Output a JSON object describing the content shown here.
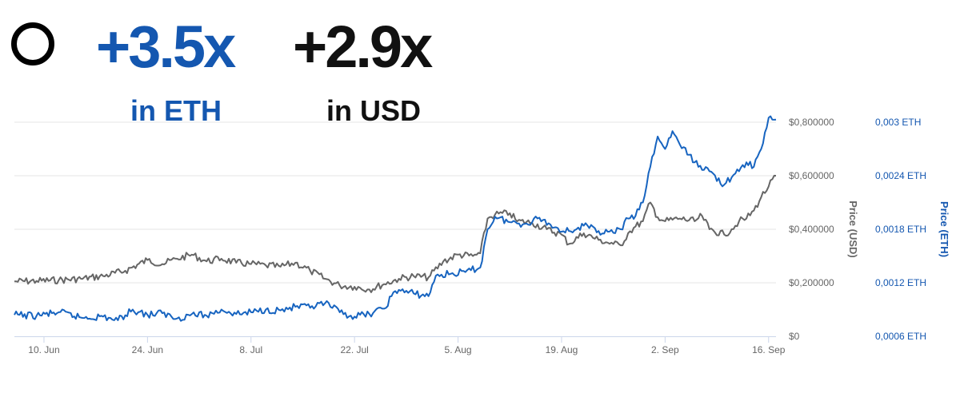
{
  "headline": {
    "eth_multiplier": "+3.5x",
    "eth_caption": "in ETH",
    "usd_multiplier": "+2.9x",
    "usd_caption": "in USD"
  },
  "colors": {
    "eth": "#1764c0",
    "usd": "#666666",
    "eth_text": "#1457b0",
    "grid": "#e6e6e6",
    "axis_text": "#666666"
  },
  "chart_data": {
    "type": "line",
    "title": "",
    "xlabel": "",
    "x_ticks": [
      "10. Jun",
      "24. Jun",
      "8. Jul",
      "22. Jul",
      "5. Aug",
      "19. Aug",
      "2. Sep",
      "16. Sep"
    ],
    "x_range": [
      "2019-06-06",
      "2019-09-17"
    ],
    "x_tick_dates": [
      "2019-06-10",
      "2019-06-24",
      "2019-07-08",
      "2019-07-22",
      "2019-08-05",
      "2019-08-19",
      "2019-09-02",
      "2019-09-16"
    ],
    "y_left": {
      "label": "Price (USD)",
      "tick_labels": [
        "$0",
        "$0,200000",
        "$0,400000",
        "$0,600000",
        "$0,800000"
      ],
      "tick_values": [
        0,
        0.2,
        0.4,
        0.6,
        0.8
      ],
      "range": [
        0,
        0.8
      ]
    },
    "y_right": {
      "label": "Price (ETH)",
      "tick_labels": [
        "0,0006 ETH",
        "0,0012 ETH",
        "0,0018 ETH",
        "0,0024 ETH",
        "0,003 ETH"
      ],
      "tick_values": [
        0.0006,
        0.0012,
        0.0018,
        0.0024,
        0.003
      ],
      "range": [
        0.0006,
        0.003
      ]
    },
    "grid": true,
    "series": [
      {
        "name": "Price (USD)",
        "axis": "left",
        "points": [
          [
            "2019-06-06",
            0.205
          ],
          [
            "2019-06-09",
            0.207
          ],
          [
            "2019-06-12",
            0.21
          ],
          [
            "2019-06-15",
            0.215
          ],
          [
            "2019-06-18",
            0.225
          ],
          [
            "2019-06-21",
            0.245
          ],
          [
            "2019-06-24",
            0.285
          ],
          [
            "2019-06-26",
            0.27
          ],
          [
            "2019-06-28",
            0.29
          ],
          [
            "2019-06-30",
            0.305
          ],
          [
            "2019-07-02",
            0.28
          ],
          [
            "2019-07-04",
            0.29
          ],
          [
            "2019-07-06",
            0.275
          ],
          [
            "2019-07-08",
            0.27
          ],
          [
            "2019-07-10",
            0.265
          ],
          [
            "2019-07-12",
            0.26
          ],
          [
            "2019-07-14",
            0.275
          ],
          [
            "2019-07-16",
            0.245
          ],
          [
            "2019-07-18",
            0.215
          ],
          [
            "2019-07-20",
            0.19
          ],
          [
            "2019-07-22",
            0.185
          ],
          [
            "2019-07-24",
            0.175
          ],
          [
            "2019-07-26",
            0.195
          ],
          [
            "2019-07-28",
            0.215
          ],
          [
            "2019-07-30",
            0.225
          ],
          [
            "2019-08-01",
            0.22
          ],
          [
            "2019-08-03",
            0.28
          ],
          [
            "2019-08-05",
            0.305
          ],
          [
            "2019-08-07",
            0.3
          ],
          [
            "2019-08-08",
            0.31
          ],
          [
            "2019-08-09",
            0.44
          ],
          [
            "2019-08-10",
            0.455
          ],
          [
            "2019-08-12",
            0.46
          ],
          [
            "2019-08-13",
            0.43
          ],
          [
            "2019-08-15",
            0.425
          ],
          [
            "2019-08-17",
            0.4
          ],
          [
            "2019-08-19",
            0.38
          ],
          [
            "2019-08-20",
            0.345
          ],
          [
            "2019-08-22",
            0.385
          ],
          [
            "2019-08-24",
            0.36
          ],
          [
            "2019-08-26",
            0.345
          ],
          [
            "2019-08-27",
            0.34
          ],
          [
            "2019-08-28",
            0.385
          ],
          [
            "2019-08-29",
            0.41
          ],
          [
            "2019-08-30",
            0.43
          ],
          [
            "2019-08-31",
            0.5
          ],
          [
            "2019-09-01",
            0.445
          ],
          [
            "2019-09-02",
            0.43
          ],
          [
            "2019-09-04",
            0.44
          ],
          [
            "2019-09-06",
            0.43
          ],
          [
            "2019-09-07",
            0.45
          ],
          [
            "2019-09-08",
            0.4
          ],
          [
            "2019-09-10",
            0.38
          ],
          [
            "2019-09-11",
            0.4
          ],
          [
            "2019-09-12",
            0.43
          ],
          [
            "2019-09-13",
            0.44
          ],
          [
            "2019-09-14",
            0.47
          ],
          [
            "2019-09-15",
            0.52
          ],
          [
            "2019-09-16",
            0.56
          ],
          [
            "2019-09-17",
            0.6
          ]
        ]
      },
      {
        "name": "Price (ETH)",
        "axis": "right",
        "points": [
          [
            "2019-06-06",
            0.00084
          ],
          [
            "2019-06-09",
            0.00083
          ],
          [
            "2019-06-12",
            0.00087
          ],
          [
            "2019-06-15",
            0.00081
          ],
          [
            "2019-06-18",
            0.00082
          ],
          [
            "2019-06-20",
            0.00078
          ],
          [
            "2019-06-22",
            0.0009
          ],
          [
            "2019-06-24",
            0.00084
          ],
          [
            "2019-06-26",
            0.00086
          ],
          [
            "2019-06-28",
            0.0008
          ],
          [
            "2019-06-30",
            0.00085
          ],
          [
            "2019-07-02",
            0.00083
          ],
          [
            "2019-07-04",
            0.0009
          ],
          [
            "2019-07-06",
            0.00085
          ],
          [
            "2019-07-08",
            0.00087
          ],
          [
            "2019-07-10",
            0.0009
          ],
          [
            "2019-07-12",
            0.00089
          ],
          [
            "2019-07-14",
            0.00093
          ],
          [
            "2019-07-16",
            0.00092
          ],
          [
            "2019-07-18",
            0.00097
          ],
          [
            "2019-07-20",
            0.00087
          ],
          [
            "2019-07-22",
            0.00082
          ],
          [
            "2019-07-24",
            0.00085
          ],
          [
            "2019-07-26",
            0.00091
          ],
          [
            "2019-07-27",
            0.00105
          ],
          [
            "2019-07-28",
            0.00112
          ],
          [
            "2019-07-30",
            0.00108
          ],
          [
            "2019-08-01",
            0.00105
          ],
          [
            "2019-08-02",
            0.00128
          ],
          [
            "2019-08-04",
            0.0013
          ],
          [
            "2019-08-06",
            0.00132
          ],
          [
            "2019-08-08",
            0.00137
          ],
          [
            "2019-08-09",
            0.0018
          ],
          [
            "2019-08-10",
            0.00194
          ],
          [
            "2019-08-12",
            0.00188
          ],
          [
            "2019-08-14",
            0.00186
          ],
          [
            "2019-08-16",
            0.00193
          ],
          [
            "2019-08-18",
            0.00182
          ],
          [
            "2019-08-20",
            0.00178
          ],
          [
            "2019-08-22",
            0.00184
          ],
          [
            "2019-08-24",
            0.00178
          ],
          [
            "2019-08-26",
            0.00176
          ],
          [
            "2019-08-27",
            0.0018
          ],
          [
            "2019-08-28",
            0.00192
          ],
          [
            "2019-08-29",
            0.00195
          ],
          [
            "2019-08-30",
            0.0021
          ],
          [
            "2019-08-31",
            0.0025
          ],
          [
            "2019-09-01",
            0.00284
          ],
          [
            "2019-09-02",
            0.0027
          ],
          [
            "2019-09-03",
            0.0029
          ],
          [
            "2019-09-04",
            0.00275
          ],
          [
            "2019-09-06",
            0.00255
          ],
          [
            "2019-09-08",
            0.00245
          ],
          [
            "2019-09-10",
            0.0023
          ],
          [
            "2019-09-11",
            0.00238
          ],
          [
            "2019-09-12",
            0.00245
          ],
          [
            "2019-09-13",
            0.00255
          ],
          [
            "2019-09-14",
            0.0025
          ],
          [
            "2019-09-15",
            0.0027
          ],
          [
            "2019-09-16",
            0.00305
          ],
          [
            "2019-09-17",
            0.00303
          ]
        ]
      }
    ]
  }
}
